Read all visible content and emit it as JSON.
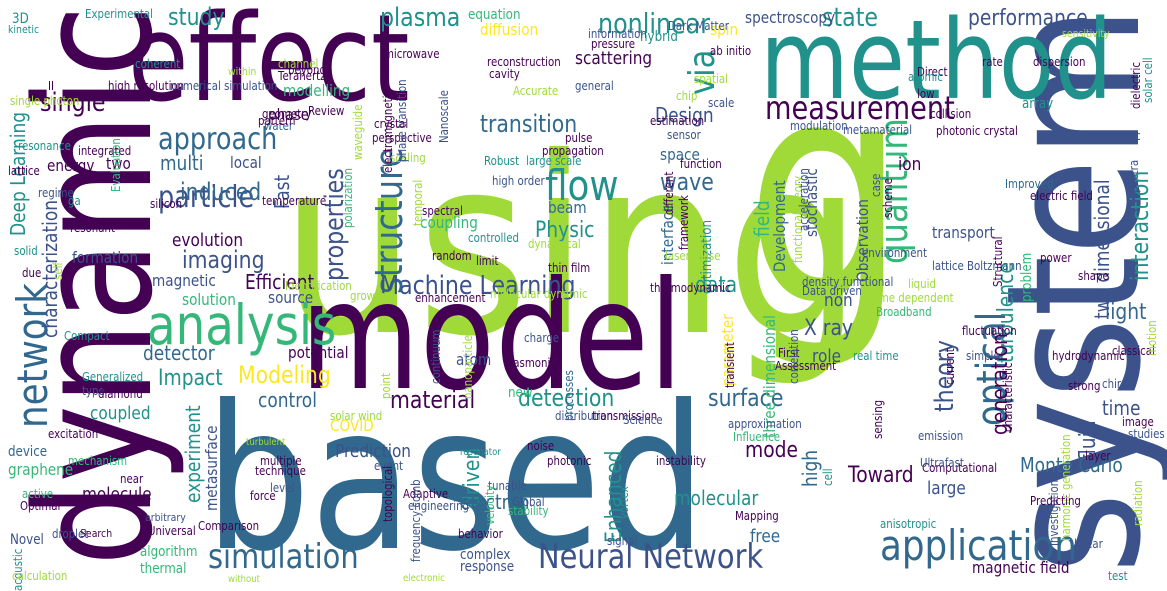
{
  "palette": {
    "dark_purple": "#440154",
    "indigo": "#3b528b",
    "blue": "#31688e",
    "teal": "#21918c",
    "green": "#35b779",
    "lime": "#a0da39",
    "yellow": "#fde725"
  },
  "words": [
    {
      "text": "using",
      "color": "#a0da39"
    },
    {
      "text": "based",
      "color": "#31688e"
    },
    {
      "text": "model",
      "color": "#440154"
    },
    {
      "text": "system",
      "color": "#3b528b"
    },
    {
      "text": "dynamic",
      "color": "#440154"
    },
    {
      "text": "effect",
      "color": "#440154"
    },
    {
      "text": "method",
      "color": "#21918c"
    },
    {
      "text": "g",
      "color": "#a0da39"
    },
    {
      "text": "analysis",
      "color": "#35b779"
    },
    {
      "text": "application",
      "color": "#31688e"
    },
    {
      "text": "simulation",
      "color": "#31688e"
    },
    {
      "text": "Neural Network",
      "color": "#3b528b"
    },
    {
      "text": "measurement",
      "color": "#440154"
    },
    {
      "text": "flow",
      "color": "#21918c"
    },
    {
      "text": "network",
      "color": "#31688e"
    },
    {
      "text": "optical",
      "color": "#31688e"
    },
    {
      "text": "quantum",
      "color": "#35b779"
    },
    {
      "text": "properties",
      "color": "#3b528b"
    },
    {
      "text": "structure",
      "color": "#31688e"
    },
    {
      "text": "via",
      "color": "#21918c"
    },
    {
      "text": "particle",
      "color": "#3b528b"
    },
    {
      "text": "approach",
      "color": "#31688e"
    },
    {
      "text": "Machine Learning",
      "color": "#3b528b"
    },
    {
      "text": "plasma",
      "color": "#21918c"
    },
    {
      "text": "study",
      "color": "#21918c"
    },
    {
      "text": "state",
      "color": "#21918c"
    },
    {
      "text": "performance",
      "color": "#3b528b"
    },
    {
      "text": "nonlinear",
      "color": "#21918c"
    },
    {
      "text": "transition",
      "color": "#31688e"
    },
    {
      "text": "single",
      "color": "#440154"
    },
    {
      "text": "induced",
      "color": "#31688e"
    },
    {
      "text": "imaging",
      "color": "#3b528b"
    },
    {
      "text": "Physic",
      "color": "#21918c"
    },
    {
      "text": "wave",
      "color": "#31688e"
    },
    {
      "text": "interaction",
      "color": "#21918c"
    },
    {
      "text": "Efficient",
      "color": "#440154"
    },
    {
      "text": "data",
      "color": "#21918c"
    },
    {
      "text": "light",
      "color": "#31688e"
    },
    {
      "text": "turbulence",
      "color": "#21918c"
    },
    {
      "text": "two dimensional",
      "color": "#3b528b"
    },
    {
      "text": "Modeling",
      "color": "#fde725"
    },
    {
      "text": "material",
      "color": "#440154"
    },
    {
      "text": "detection",
      "color": "#21918c"
    },
    {
      "text": "surface",
      "color": "#31688e"
    },
    {
      "text": "control",
      "color": "#31688e"
    },
    {
      "text": "detector",
      "color": "#31688e"
    },
    {
      "text": "Impact",
      "color": "#21918c"
    },
    {
      "text": "theory",
      "color": "#3b528b"
    },
    {
      "text": "generation",
      "color": "#440154"
    },
    {
      "text": "time",
      "color": "#3b528b"
    },
    {
      "text": "fluid",
      "color": "#3b528b"
    },
    {
      "text": "X ray",
      "color": "#3b528b"
    },
    {
      "text": "mode",
      "color": "#440154"
    },
    {
      "text": "Toward",
      "color": "#440154"
    },
    {
      "text": "Design",
      "color": "#3b528b"
    },
    {
      "text": "multi",
      "color": "#31688e"
    },
    {
      "text": "Deep Learning",
      "color": "#21918c"
    },
    {
      "text": "characterization",
      "color": "#3b528b"
    },
    {
      "text": "Monte Carlo",
      "color": "#31688e"
    },
    {
      "text": "Enhanced",
      "color": "#21918c"
    },
    {
      "text": "driven",
      "color": "#21918c"
    },
    {
      "text": "electron",
      "color": "#31688e"
    },
    {
      "text": "molecular",
      "color": "#21918c"
    },
    {
      "text": "molecule",
      "color": "#440154"
    },
    {
      "text": "Prediction",
      "color": "#3b528b"
    },
    {
      "text": "experiment",
      "color": "#21918c"
    },
    {
      "text": "high",
      "color": "#31688e"
    },
    {
      "text": "large",
      "color": "#3b528b"
    },
    {
      "text": "magnetic field",
      "color": "#440154"
    },
    {
      "text": "free",
      "color": "#31688e"
    },
    {
      "text": "complex",
      "color": "#3b528b"
    },
    {
      "text": "response",
      "color": "#3b528b"
    },
    {
      "text": "coupled",
      "color": "#21918c"
    },
    {
      "text": "evolution",
      "color": "#440154"
    },
    {
      "text": "magnetic",
      "color": "#3b528b"
    },
    {
      "text": "solution",
      "color": "#35b779"
    },
    {
      "text": "formation",
      "color": "#3b528b"
    },
    {
      "text": "energy",
      "color": "#440154"
    },
    {
      "text": "potential",
      "color": "#440154"
    },
    {
      "text": "source",
      "color": "#3b528b"
    },
    {
      "text": "non",
      "color": "#3b528b"
    },
    {
      "text": "role",
      "color": "#3b528b"
    },
    {
      "text": "atom",
      "color": "#3b528b"
    },
    {
      "text": "field",
      "color": "#35b779"
    },
    {
      "text": "Development",
      "color": "#31688e"
    },
    {
      "text": "stochastic",
      "color": "#3b528b"
    },
    {
      "text": "Observation",
      "color": "#3b528b"
    },
    {
      "text": "ion",
      "color": "#440154"
    },
    {
      "text": "spectroscopy",
      "color": "#3b528b"
    },
    {
      "text": "equation",
      "color": "#35b779"
    },
    {
      "text": "diffusion",
      "color": "#fde725"
    },
    {
      "text": "scattering",
      "color": "#440154"
    },
    {
      "text": "hybrid",
      "color": "#21918c"
    },
    {
      "text": "spin",
      "color": "#fde725"
    },
    {
      "text": "array",
      "color": "#21918c"
    },
    {
      "text": "interface",
      "color": "#31688e"
    },
    {
      "text": "beam",
      "color": "#31688e"
    },
    {
      "text": "coupling",
      "color": "#35b779"
    },
    {
      "text": "space",
      "color": "#31688e"
    },
    {
      "text": "two",
      "color": "#440154"
    },
    {
      "text": "local",
      "color": "#3b528b"
    },
    {
      "text": "modelling",
      "color": "#35b779"
    },
    {
      "text": "phase",
      "color": "#440154"
    },
    {
      "text": "Fast",
      "color": "#3b528b"
    },
    {
      "text": "new",
      "color": "#35b779"
    },
    {
      "text": "transport",
      "color": "#3b528b"
    },
    {
      "text": "problem",
      "color": "#35b779"
    },
    {
      "text": "three dimensional",
      "color": "#35b779"
    },
    {
      "text": "parameter",
      "color": "#fde725"
    },
    {
      "text": "optimization",
      "color": "#21918c"
    },
    {
      "text": "metasurface",
      "color": "#3b528b"
    },
    {
      "text": "algorithm",
      "color": "#35b779"
    },
    {
      "text": "thermal",
      "color": "#35b779"
    },
    {
      "text": "graphene",
      "color": "#35b779"
    },
    {
      "text": "device",
      "color": "#31688e"
    },
    {
      "text": "COVID",
      "color": "#fde725"
    },
    {
      "text": "3D",
      "color": "#21918c"
    },
    {
      "text": "water",
      "color": "#31688e"
    },
    {
      "text": "Adaptive",
      "color": "#440154"
    },
    {
      "text": "noise",
      "color": "#440154"
    },
    {
      "text": "photonic",
      "color": "#440154"
    },
    {
      "text": "tunable",
      "color": "#3b528b"
    },
    {
      "text": "Global",
      "color": "#3b528b"
    },
    {
      "text": "behavior",
      "color": "#440154"
    },
    {
      "text": "Mapping",
      "color": "#440154"
    },
    {
      "text": "cell",
      "color": "#21918c"
    },
    {
      "text": "Computational",
      "color": "#440154"
    },
    {
      "text": "Ultrafast",
      "color": "#3b528b"
    },
    {
      "text": "emission",
      "color": "#3b528b"
    },
    {
      "text": "layer",
      "color": "#440154"
    },
    {
      "text": "studies",
      "color": "#3b528b"
    },
    {
      "text": "image",
      "color": "#440154"
    },
    {
      "text": "chiral",
      "color": "#3b528b"
    },
    {
      "text": "classical",
      "color": "#440154"
    },
    {
      "text": "strong",
      "color": "#440154"
    },
    {
      "text": "hydrodynamic",
      "color": "#440154"
    },
    {
      "text": "fluctuation",
      "color": "#440154"
    },
    {
      "text": "shape",
      "color": "#440154"
    },
    {
      "text": "power",
      "color": "#440154"
    },
    {
      "text": "temperature",
      "color": "#440154"
    },
    {
      "text": "ga",
      "color": "#21918c"
    },
    {
      "text": "silicon",
      "color": "#440154"
    },
    {
      "text": "resonant",
      "color": "#440154"
    },
    {
      "text": "regime",
      "color": "#3b528b"
    },
    {
      "text": "solid",
      "color": "#21918c"
    },
    {
      "text": "due",
      "color": "#440154"
    },
    {
      "text": "self",
      "color": "#a0da39"
    },
    {
      "text": "Compact",
      "color": "#21918c"
    },
    {
      "text": "Generalized",
      "color": "#21918c"
    },
    {
      "text": "type",
      "color": "#3b528b"
    },
    {
      "text": "diamond",
      "color": "#440154"
    },
    {
      "text": "excitation",
      "color": "#440154"
    },
    {
      "text": "mechanism",
      "color": "#35b779"
    },
    {
      "text": "active",
      "color": "#35b779"
    },
    {
      "text": "Optimal",
      "color": "#440154"
    },
    {
      "text": "near",
      "color": "#440154"
    },
    {
      "text": "Novel",
      "color": "#3b528b"
    },
    {
      "text": "droplet",
      "color": "#3b528b"
    },
    {
      "text": "acoustic",
      "color": "#21918c"
    },
    {
      "text": "calculation",
      "color": "#a0da39"
    },
    {
      "text": "Comparison",
      "color": "#440154"
    },
    {
      "text": "Universal",
      "color": "#440154"
    },
    {
      "text": "Search",
      "color": "#440154"
    },
    {
      "text": "arbitrary",
      "color": "#3b528b"
    },
    {
      "text": "level",
      "color": "#3b528b"
    },
    {
      "text": "force",
      "color": "#440154"
    },
    {
      "text": "technique",
      "color": "#440154"
    },
    {
      "text": "multiple",
      "color": "#440154"
    },
    {
      "text": "event",
      "color": "#3b528b"
    },
    {
      "text": "topological",
      "color": "#440154"
    },
    {
      "text": "frequency comb",
      "color": "#3b528b"
    },
    {
      "text": "engineering",
      "color": "#3b528b"
    },
    {
      "text": "velocity",
      "color": "#35b779"
    },
    {
      "text": "vortex",
      "color": "#21918c"
    },
    {
      "text": "signal",
      "color": "#3b528b"
    },
    {
      "text": "stability",
      "color": "#35b779"
    },
    {
      "text": "instability",
      "color": "#440154"
    },
    {
      "text": "solar wind",
      "color": "#a0da39"
    },
    {
      "text": "distribution",
      "color": "#3b528b"
    },
    {
      "text": "transmission",
      "color": "#440154"
    },
    {
      "text": "plasmonic",
      "color": "#440154"
    },
    {
      "text": "charge",
      "color": "#3b528b"
    },
    {
      "text": "point",
      "color": "#a0da39"
    },
    {
      "text": "nanoparticle",
      "color": "#a0da39"
    },
    {
      "text": "continuum",
      "color": "#3b528b"
    },
    {
      "text": "processes",
      "color": "#31688e"
    },
    {
      "text": "approximation",
      "color": "#3b528b"
    },
    {
      "text": "Influence",
      "color": "#35b779"
    },
    {
      "text": "Science",
      "color": "#3b528b"
    },
    {
      "text": "Assessment",
      "color": "#440154"
    },
    {
      "text": "First",
      "color": "#440154"
    },
    {
      "text": "transient",
      "color": "#440154"
    },
    {
      "text": "current",
      "color": "#440154"
    },
    {
      "text": "simple",
      "color": "#3b528b"
    },
    {
      "text": "characteristic",
      "color": "#440154"
    },
    {
      "text": "harmonic generation",
      "color": "#a0da39"
    },
    {
      "text": "Investigation",
      "color": "#3b528b"
    },
    {
      "text": "Predicting",
      "color": "#440154"
    },
    {
      "text": "anisotropic",
      "color": "#21918c"
    },
    {
      "text": "radiation",
      "color": "#a0da39"
    },
    {
      "text": "linear",
      "color": "#3b528b"
    },
    {
      "text": "test",
      "color": "#21918c"
    },
    {
      "text": "real time",
      "color": "#21918c"
    },
    {
      "text": "sensing",
      "color": "#440154"
    },
    {
      "text": "density functional",
      "color": "#3b528b"
    },
    {
      "text": "Data driven",
      "color": "#3b528b"
    },
    {
      "text": "correlation",
      "color": "#3b528b"
    },
    {
      "text": "time dependent",
      "color": "#a0da39"
    },
    {
      "text": "Broadband",
      "color": "#35b779"
    },
    {
      "text": "liquid",
      "color": "#a0da39"
    },
    {
      "text": "motion",
      "color": "#a0da39"
    },
    {
      "text": "lattice Boltzmann",
      "color": "#3b528b"
    },
    {
      "text": "Structural",
      "color": "#440154"
    },
    {
      "text": "environment",
      "color": "#3b528b"
    },
    {
      "text": "Improved",
      "color": "#31688e"
    },
    {
      "text": "electric field",
      "color": "#440154"
    },
    {
      "text": "2D",
      "color": "#3b528b"
    },
    {
      "text": "spectra",
      "color": "#3b528b"
    },
    {
      "text": "relativistic",
      "color": "#3b528b"
    },
    {
      "text": "dielectric",
      "color": "#440154"
    },
    {
      "text": "solar cell",
      "color": "#21918c"
    },
    {
      "text": "dispersion",
      "color": "#440154"
    },
    {
      "text": "rate",
      "color": "#440154"
    },
    {
      "text": "Direct",
      "color": "#440154"
    },
    {
      "text": "atomic",
      "color": "#21918c"
    },
    {
      "text": "low",
      "color": "#440154"
    },
    {
      "text": "collision",
      "color": "#440154"
    },
    {
      "text": "photonic crystal",
      "color": "#440154"
    },
    {
      "text": "metamaterial",
      "color": "#3b528b"
    },
    {
      "text": "modulation",
      "color": "#3b528b"
    },
    {
      "text": "scale",
      "color": "#3b528b"
    },
    {
      "text": "chip",
      "color": "#a0da39"
    },
    {
      "text": "spatial",
      "color": "#a0da39"
    },
    {
      "text": "ab initio",
      "color": "#440154"
    },
    {
      "text": "Dark Matter",
      "color": "#3b528b"
    },
    {
      "text": "pressure",
      "color": "#440154"
    },
    {
      "text": "information",
      "color": "#3b528b"
    },
    {
      "text": "reconstruction",
      "color": "#440154"
    },
    {
      "text": "cavity",
      "color": "#440154"
    },
    {
      "text": "Accurate",
      "color": "#a0da39"
    },
    {
      "text": "general",
      "color": "#3b528b"
    },
    {
      "text": "estimation",
      "color": "#440154"
    },
    {
      "text": "sensor",
      "color": "#3b528b"
    },
    {
      "text": "pulse",
      "color": "#440154"
    },
    {
      "text": "propagation",
      "color": "#440154"
    },
    {
      "text": "large scale",
      "color": "#21918c"
    },
    {
      "text": "Robust",
      "color": "#21918c"
    },
    {
      "text": "high order",
      "color": "#3b528b"
    },
    {
      "text": "function",
      "color": "#440154"
    },
    {
      "text": "spectral",
      "color": "#440154"
    },
    {
      "text": "controlled",
      "color": "#21918c"
    },
    {
      "text": "dynamical",
      "color": "#a0da39"
    },
    {
      "text": "thin film",
      "color": "#440154"
    },
    {
      "text": "limit",
      "color": "#440154"
    },
    {
      "text": "random",
      "color": "#440154"
    },
    {
      "text": "laser pulse",
      "color": "#a0da39"
    },
    {
      "text": "different",
      "color": "#440154"
    },
    {
      "text": "framework",
      "color": "#440154"
    },
    {
      "text": "functional theory",
      "color": "#a0da39"
    },
    {
      "text": "acceleration",
      "color": "#3b528b"
    },
    {
      "text": "case",
      "color": "#3b528b"
    },
    {
      "text": "scheme",
      "color": "#440154"
    },
    {
      "text": "thermodynamic",
      "color": "#440154"
    },
    {
      "text": "molecular dynamic",
      "color": "#a0da39"
    },
    {
      "text": "enhancement",
      "color": "#440154"
    },
    {
      "text": "Identification",
      "color": "#a0da39"
    },
    {
      "text": "growth",
      "color": "#a0da39"
    },
    {
      "text": "polarization",
      "color": "#35b779"
    },
    {
      "text": "waveguide",
      "color": "#a0da39"
    },
    {
      "text": "temporal",
      "color": "#a0da39"
    },
    {
      "text": "scaling",
      "color": "#a0da39"
    },
    {
      "text": "perspective",
      "color": "#440154"
    },
    {
      "text": "phase transition",
      "color": "#3b528b"
    },
    {
      "text": "electromagnetic",
      "color": "#440154"
    },
    {
      "text": "Nanoscale",
      "color": "#3b528b"
    },
    {
      "text": "crystal",
      "color": "#440154"
    },
    {
      "text": "microwave",
      "color": "#440154"
    },
    {
      "text": "beyond",
      "color": "#440154"
    },
    {
      "text": "channel",
      "color": "#a0da39"
    },
    {
      "text": "Terahertz",
      "color": "#440154"
    },
    {
      "text": "Review",
      "color": "#440154"
    },
    {
      "text": "geometry",
      "color": "#440154"
    },
    {
      "text": "pattern",
      "color": "#440154"
    },
    {
      "text": "Evaluation",
      "color": "#35b779"
    },
    {
      "text": "integrated",
      "color": "#440154"
    },
    {
      "text": "resonance",
      "color": "#21918c"
    },
    {
      "text": "lattice",
      "color": "#440154"
    },
    {
      "text": "single photon",
      "color": "#a0da39"
    },
    {
      "text": "kinetic",
      "color": "#21918c"
    },
    {
      "text": "coherent",
      "color": "#21918c"
    },
    {
      "text": "Experimental",
      "color": "#21918c"
    },
    {
      "text": "II",
      "color": "#440154"
    },
    {
      "text": "high resolution",
      "color": "#440154"
    },
    {
      "text": "numerical simulation",
      "color": "#3b528b"
    },
    {
      "text": "within",
      "color": "#a0da39"
    },
    {
      "text": "sensitivity",
      "color": "#a0da39"
    },
    {
      "text": "without",
      "color": "#a0da39"
    },
    {
      "text": "electronic",
      "color": "#a0da39"
    },
    {
      "text": "turbulent",
      "color": "#a0da39"
    },
    {
      "text": "resonator",
      "color": "#21918c"
    }
  ]
}
